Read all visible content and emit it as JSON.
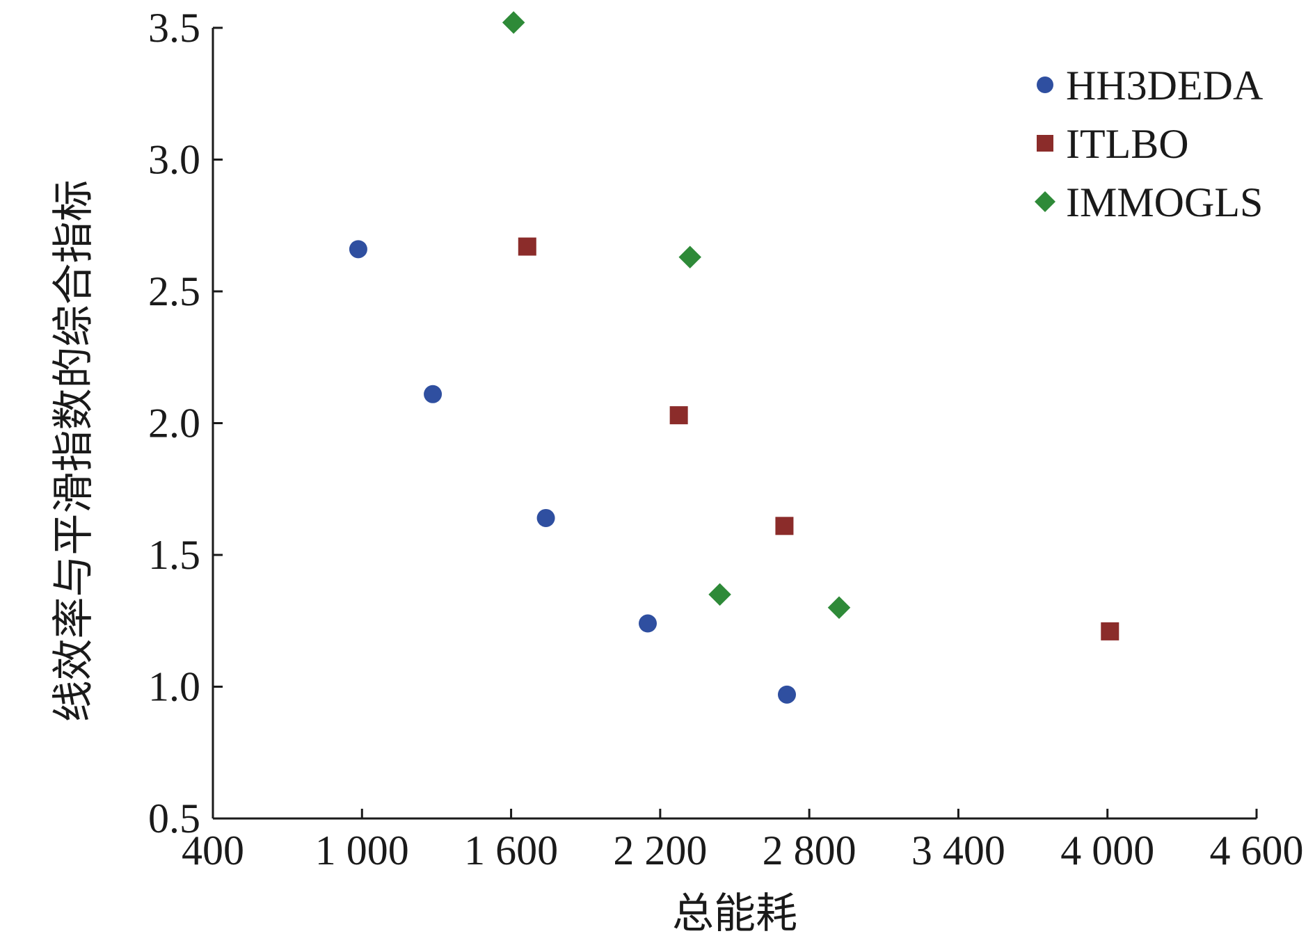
{
  "chart_data": {
    "type": "scatter",
    "xlabel": "总能耗",
    "ylabel": "线效率与平滑指数的综合指标",
    "xlim": [
      400,
      4600
    ],
    "ylim": [
      0.5,
      3.5
    ],
    "x_ticks": [
      400,
      1000,
      1600,
      2200,
      2800,
      3400,
      4000,
      4600
    ],
    "x_tick_labels": [
      "400",
      "1 000",
      "1 600",
      "2 200",
      "2 800",
      "3 400",
      "4 000",
      "4 600"
    ],
    "y_ticks": [
      0.5,
      1.0,
      1.5,
      2.0,
      2.5,
      3.0,
      3.5
    ],
    "y_tick_labels": [
      "0.5",
      "1.0",
      "1.5",
      "2.0",
      "2.5",
      "3.0",
      "3.5"
    ],
    "grid": false,
    "legend_position": "top-right",
    "series": [
      {
        "name": "HH3DEDA",
        "marker": "circle",
        "color": "#2f4fa0",
        "points": [
          {
            "x": 985,
            "y": 2.66
          },
          {
            "x": 1285,
            "y": 2.11
          },
          {
            "x": 1740,
            "y": 1.64
          },
          {
            "x": 2150,
            "y": 1.24
          },
          {
            "x": 2710,
            "y": 0.97
          }
        ]
      },
      {
        "name": "ITLBO",
        "marker": "square",
        "color": "#8b2c2a",
        "points": [
          {
            "x": 1665,
            "y": 2.67
          },
          {
            "x": 2275,
            "y": 2.03
          },
          {
            "x": 2700,
            "y": 1.61
          },
          {
            "x": 4010,
            "y": 1.21
          }
        ]
      },
      {
        "name": "IMMOGLS",
        "marker": "diamond",
        "color": "#2e8a38",
        "points": [
          {
            "x": 1610,
            "y": 3.52
          },
          {
            "x": 2320,
            "y": 2.63
          },
          {
            "x": 2440,
            "y": 1.35
          },
          {
            "x": 2920,
            "y": 1.3
          }
        ]
      }
    ]
  }
}
